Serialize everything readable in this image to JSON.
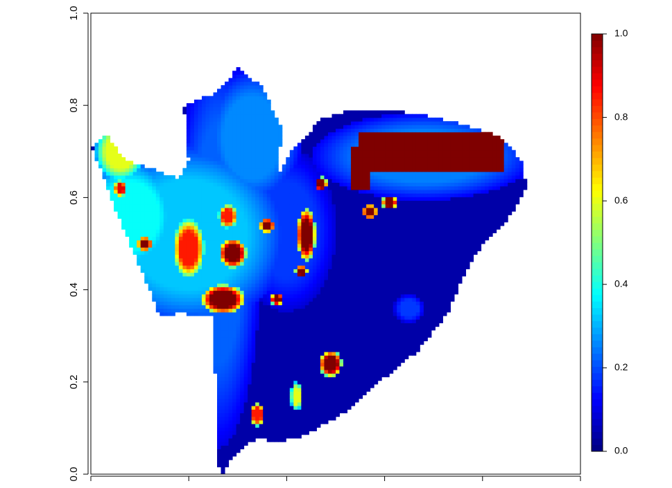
{
  "chart_data": {
    "type": "heatmap",
    "title": "",
    "xlabel": "",
    "ylabel": "",
    "xlim": [
      0,
      1
    ],
    "ylim": [
      0,
      1
    ],
    "x_ticks": [
      0,
      0.2,
      0.4,
      0.6,
      0.8,
      1.0
    ],
    "x_tick_labels": [
      "",
      "",
      "",
      "",
      "",
      ""
    ],
    "y_ticks": [
      0,
      0.2,
      0.4,
      0.6,
      0.8,
      1.0
    ],
    "y_tick_labels": [
      "0.0",
      "0.2",
      "0.4",
      "0.6",
      "0.8",
      "1.0"
    ],
    "colorbar": {
      "range": [
        0,
        1
      ],
      "ticks": [
        0,
        0.2,
        0.4,
        0.6,
        0.8,
        1.0
      ],
      "tick_labels": [
        "0.0",
        "0.2",
        "0.4",
        "0.6",
        "0.8",
        "1.0"
      ],
      "colormap": "jet",
      "colors": [
        "#00007F",
        "#0000FF",
        "#007FFF",
        "#00FFFF",
        "#7FFF7F",
        "#FFFF00",
        "#FF7F00",
        "#FF0000",
        "#7F0000"
      ]
    },
    "field_outline": [
      [
        0.0,
        0.71
      ],
      [
        0.03,
        0.74
      ],
      [
        0.07,
        0.68
      ],
      [
        0.13,
        0.66
      ],
      [
        0.18,
        0.64
      ],
      [
        0.2,
        0.68
      ],
      [
        0.19,
        0.8
      ],
      [
        0.26,
        0.83
      ],
      [
        0.3,
        0.88
      ],
      [
        0.35,
        0.84
      ],
      [
        0.39,
        0.75
      ],
      [
        0.38,
        0.64
      ],
      [
        0.41,
        0.7
      ],
      [
        0.47,
        0.77
      ],
      [
        0.53,
        0.79
      ],
      [
        0.61,
        0.79
      ],
      [
        0.68,
        0.78
      ],
      [
        0.76,
        0.76
      ],
      [
        0.84,
        0.73
      ],
      [
        0.88,
        0.68
      ],
      [
        0.89,
        0.62
      ],
      [
        0.85,
        0.55
      ],
      [
        0.8,
        0.5
      ],
      [
        0.76,
        0.43
      ],
      [
        0.73,
        0.35
      ],
      [
        0.67,
        0.27
      ],
      [
        0.6,
        0.21
      ],
      [
        0.54,
        0.15
      ],
      [
        0.48,
        0.11
      ],
      [
        0.43,
        0.08
      ],
      [
        0.38,
        0.07
      ],
      [
        0.34,
        0.08
      ],
      [
        0.29,
        0.04
      ],
      [
        0.27,
        0.0
      ],
      [
        0.26,
        0.02
      ],
      [
        0.25,
        0.34
      ],
      [
        0.18,
        0.35
      ],
      [
        0.14,
        0.34
      ],
      [
        0.12,
        0.4
      ],
      [
        0.08,
        0.5
      ],
      [
        0.04,
        0.6
      ],
      [
        0.02,
        0.66
      ]
    ],
    "background_value": 0.04,
    "features": [
      {
        "shape": "ellipse",
        "x": 0.68,
        "y": 0.69,
        "rx": 0.18,
        "ry": 0.075,
        "value": 0.25
      },
      {
        "shape": "rect",
        "x0": 0.55,
        "x1": 0.84,
        "y0": 0.66,
        "y1": 0.74,
        "value": 1.0
      },
      {
        "shape": "rect",
        "x0": 0.53,
        "x1": 0.57,
        "y0": 0.62,
        "y1": 0.71,
        "value": 1.0
      },
      {
        "shape": "ellipse",
        "x": 0.2,
        "y": 0.52,
        "rx": 0.16,
        "ry": 0.16,
        "value": 0.32
      },
      {
        "shape": "ellipse",
        "x": 0.08,
        "y": 0.56,
        "rx": 0.08,
        "ry": 0.1,
        "value": 0.38
      },
      {
        "shape": "ellipse",
        "x": 0.26,
        "y": 0.5,
        "rx": 0.07,
        "ry": 0.35,
        "value": 0.22
      },
      {
        "shape": "ellipse",
        "x": 0.4,
        "y": 0.53,
        "rx": 0.08,
        "ry": 0.14,
        "value": 0.18
      },
      {
        "shape": "ellipse",
        "x": 0.33,
        "y": 0.73,
        "rx": 0.08,
        "ry": 0.12,
        "value": 0.26
      },
      {
        "shape": "ellipse",
        "x": 0.06,
        "y": 0.7,
        "rx": 0.04,
        "ry": 0.05,
        "value": 0.6
      },
      {
        "shape": "ellipse",
        "x": 0.2,
        "y": 0.49,
        "rx": 0.025,
        "ry": 0.05,
        "value": 0.85
      },
      {
        "shape": "ellipse",
        "x": 0.29,
        "y": 0.48,
        "rx": 0.022,
        "ry": 0.025,
        "value": 1.0
      },
      {
        "shape": "ellipse",
        "x": 0.44,
        "y": 0.52,
        "rx": 0.015,
        "ry": 0.045,
        "value": 1.0
      },
      {
        "shape": "ellipse",
        "x": 0.27,
        "y": 0.38,
        "rx": 0.035,
        "ry": 0.025,
        "value": 1.0
      },
      {
        "shape": "ellipse",
        "x": 0.49,
        "y": 0.24,
        "rx": 0.018,
        "ry": 0.022,
        "value": 1.0
      },
      {
        "shape": "ellipse",
        "x": 0.63,
        "y": 0.21,
        "rx": 0.012,
        "ry": 0.014,
        "value": 1.0
      },
      {
        "shape": "ellipse",
        "x": 0.11,
        "y": 0.5,
        "rx": 0.012,
        "ry": 0.012,
        "value": 1.0
      },
      {
        "shape": "ellipse",
        "x": 0.06,
        "y": 0.62,
        "rx": 0.01,
        "ry": 0.014,
        "value": 0.9
      },
      {
        "shape": "ellipse",
        "x": 0.47,
        "y": 0.63,
        "rx": 0.01,
        "ry": 0.012,
        "value": 1.0
      },
      {
        "shape": "ellipse",
        "x": 0.61,
        "y": 0.59,
        "rx": 0.012,
        "ry": 0.012,
        "value": 1.0
      },
      {
        "shape": "ellipse",
        "x": 0.57,
        "y": 0.57,
        "rx": 0.012,
        "ry": 0.012,
        "value": 1.0
      },
      {
        "shape": "ellipse",
        "x": 0.43,
        "y": 0.44,
        "rx": 0.01,
        "ry": 0.01,
        "value": 1.0
      },
      {
        "shape": "ellipse",
        "x": 0.38,
        "y": 0.38,
        "rx": 0.01,
        "ry": 0.01,
        "value": 1.0
      },
      {
        "shape": "ellipse",
        "x": 0.34,
        "y": 0.13,
        "rx": 0.012,
        "ry": 0.02,
        "value": 0.85
      },
      {
        "shape": "ellipse",
        "x": 0.42,
        "y": 0.17,
        "rx": 0.01,
        "ry": 0.025,
        "value": 0.6
      },
      {
        "shape": "ellipse",
        "x": 0.28,
        "y": 0.56,
        "rx": 0.015,
        "ry": 0.02,
        "value": 0.85
      },
      {
        "shape": "ellipse",
        "x": 0.36,
        "y": 0.54,
        "rx": 0.012,
        "ry": 0.012,
        "value": 1.0
      },
      {
        "shape": "ellipse",
        "x": 0.65,
        "y": 0.36,
        "rx": 0.025,
        "ry": 0.025,
        "value": 0.18
      }
    ]
  }
}
